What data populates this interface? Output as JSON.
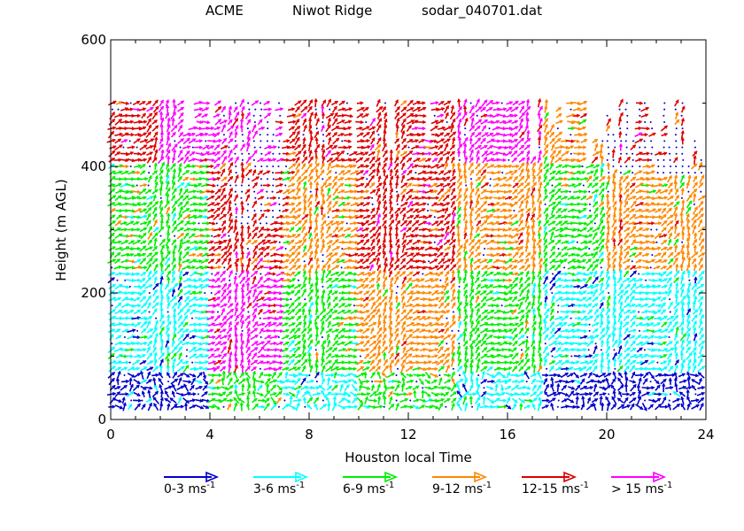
{
  "header": {
    "label_1": "ACME",
    "label_2": "Niwot Ridge",
    "label_3": "sodar_040701.dat"
  },
  "chart_data": {
    "type": "vector-field",
    "title": "ACME        Niwot Ridge        sodar_040701.dat",
    "xlabel": "Houston local Time",
    "ylabel": "Height (m AGL)",
    "xlim": [
      0,
      24
    ],
    "ylim": [
      0,
      600
    ],
    "xticks": [
      0,
      4,
      8,
      12,
      16,
      20,
      24
    ],
    "yticks": [
      0,
      200,
      400,
      600
    ],
    "grid": false,
    "measurement_heights": [
      20,
      500
    ],
    "time_step_hours": 0.25,
    "height_step_m": 10,
    "legend": [
      {
        "range": "0-3",
        "unit": "ms",
        "exp": "-1",
        "color": "#0000cc"
      },
      {
        "range": "3-6",
        "unit": "ms",
        "exp": "-1",
        "color": "#00ffff"
      },
      {
        "range": "6-9",
        "unit": "ms",
        "exp": "-1",
        "color": "#00ee00"
      },
      {
        "range": "9-12",
        "unit": "ms",
        "exp": "-1",
        "color": "#ff8800"
      },
      {
        "range": "12-15",
        "unit": "ms",
        "exp": "-1",
        "color": "#dd0000"
      },
      {
        "range": "> 15",
        "unit": "ms",
        "exp": "-1",
        "color": "#ff00ff"
      }
    ],
    "speed_class_profile": [
      {
        "from_hour": 0.0,
        "to_hour": 2.0,
        "low": "0-3",
        "mid": "3-6",
        "high": "6-9",
        "top": "12-15"
      },
      {
        "from_hour": 2.0,
        "to_hour": 4.0,
        "low": "0-3",
        "mid": "3-6",
        "high": "6-9",
        "top": "> 15"
      },
      {
        "from_hour": 4.0,
        "to_hour": 7.0,
        "low": "6-9",
        "mid": "> 15",
        "high": "12-15",
        "top": "> 15"
      },
      {
        "from_hour": 7.0,
        "to_hour": 10.0,
        "low": "3-6",
        "mid": "6-9",
        "high": "9-12",
        "top": "12-15"
      },
      {
        "from_hour": 10.0,
        "to_hour": 14.0,
        "low": "6-9",
        "mid": "9-12",
        "high": "12-15",
        "top": "12-15"
      },
      {
        "from_hour": 14.0,
        "to_hour": 17.5,
        "low": "3-6",
        "mid": "6-9",
        "high": "9-12",
        "top": "> 15"
      },
      {
        "from_hour": 17.5,
        "to_hour": 20.0,
        "low": "0-3",
        "mid": "3-6",
        "high": "6-9",
        "top": "9-12"
      },
      {
        "from_hour": 20.0,
        "to_hour": 24.0,
        "low": "0-3",
        "mid": "3-6",
        "high": "9-12",
        "top": "12-15"
      }
    ]
  }
}
